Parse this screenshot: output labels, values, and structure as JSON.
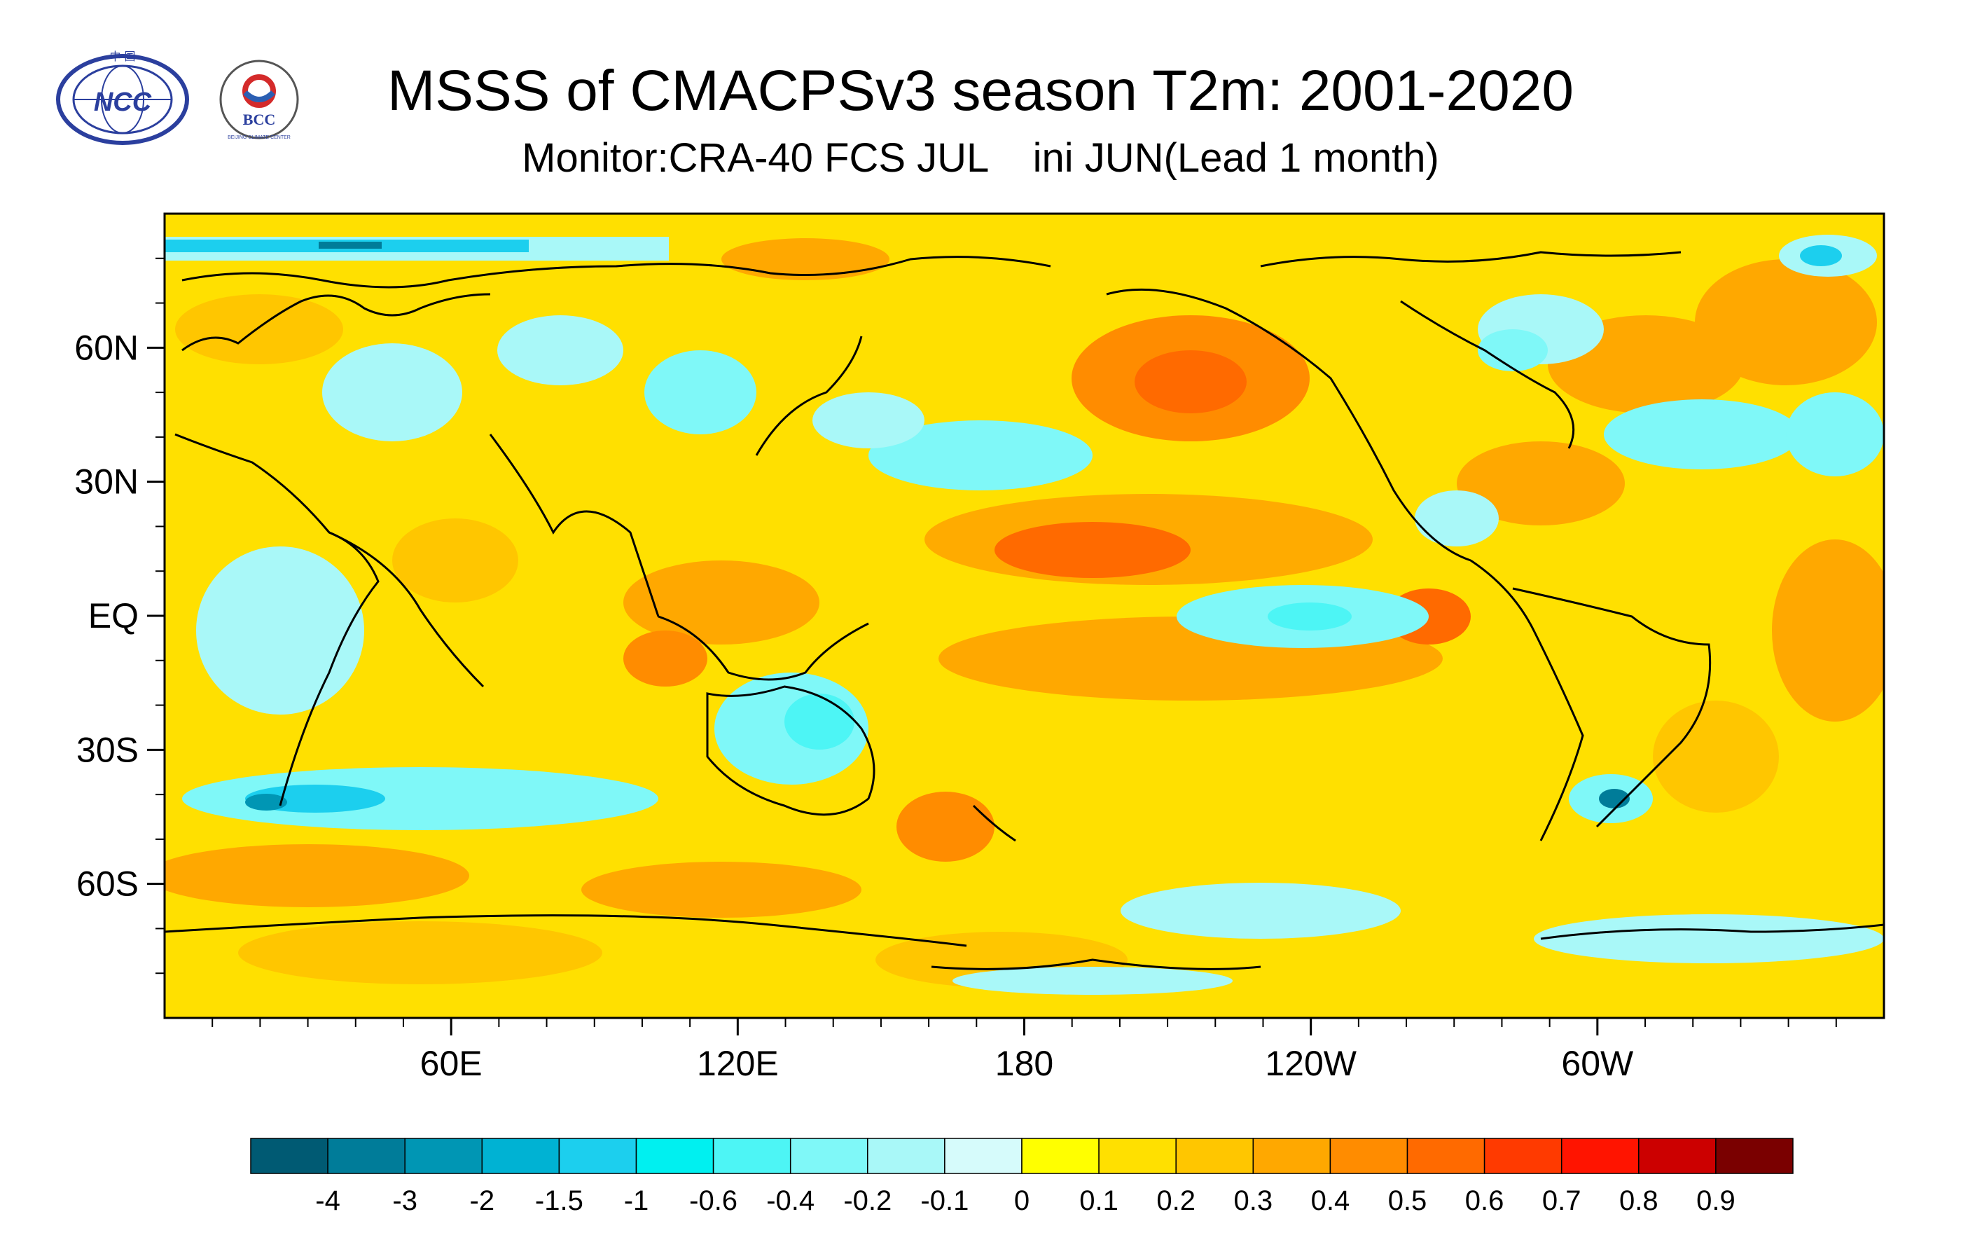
{
  "title": "MSSS of CMACPSv3 season T2m: 2001-2020",
  "subtitle": "Monitor:CRA-40 FCS JUL    ini JUN(Lead 1 month)",
  "logos": {
    "ncc": {
      "text": "NCC",
      "top_text": "中 国"
    },
    "bcc": {
      "text": "BCC",
      "ring_text": "BEIJING CLIMATE CENTER"
    }
  },
  "map": {
    "lat_labels": [
      "60N",
      "30N",
      "EQ",
      "30S",
      "60S"
    ],
    "lon_labels": [
      "60E",
      "120E",
      "180",
      "120W",
      "60W"
    ]
  },
  "colorbar": {
    "labels": [
      "-4",
      "-3",
      "-2",
      "-1.5",
      "-1",
      "-0.6",
      "-0.4",
      "-0.2",
      "-0.1",
      "0",
      "0.1",
      "0.2",
      "0.3",
      "0.4",
      "0.5",
      "0.6",
      "0.7",
      "0.8",
      "0.9"
    ],
    "colors": [
      "#005a73",
      "#007c99",
      "#0096b4",
      "#00b2d3",
      "#1ccfee",
      "#00f0f0",
      "#4df5f5",
      "#7ff8f8",
      "#a9f8f8",
      "#d6fbfb",
      "#ffff00",
      "#ffe000",
      "#ffc600",
      "#ffa800",
      "#ff8c00",
      "#ff6a00",
      "#ff3a00",
      "#ff1400",
      "#cc0000",
      "#7a0000"
    ]
  },
  "palette": {
    "deep_blue": "#005a73",
    "cyan": "#1ccfee",
    "light_cyan": "#a9f8f8",
    "yellow": "#ffe000",
    "orange": "#ffa800",
    "red": "#ff3a00"
  }
}
